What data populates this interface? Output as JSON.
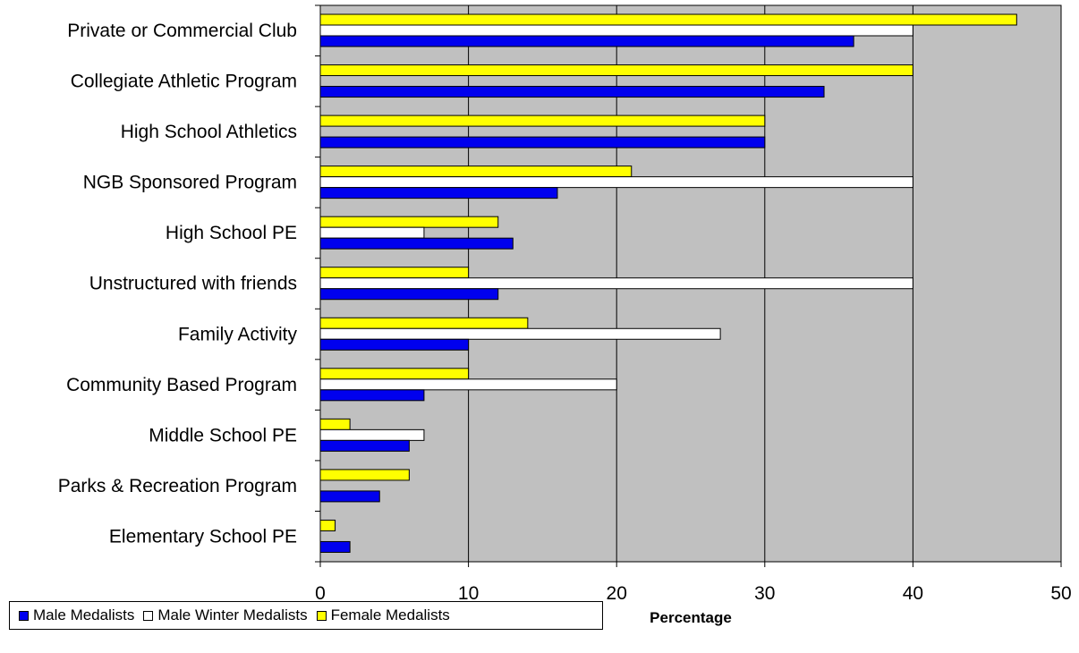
{
  "chart_data": {
    "type": "bar",
    "orientation": "horizontal",
    "categories": [
      "Private or Commercial Club",
      "Collegiate Athletic Program",
      "High School Athletics",
      "NGB Sponsored Program",
      "High School PE",
      "Unstructured with friends",
      "Family Activity",
      "Community Based Program",
      "Middle School PE",
      "Parks & Recreation Program",
      "Elementary School PE"
    ],
    "series": [
      {
        "name": "Male Medalists",
        "color": "#0000ee",
        "values": [
          36,
          34,
          30,
          16,
          13,
          12,
          10,
          7,
          6,
          4,
          2
        ]
      },
      {
        "name": "Male Winter Medalists",
        "color": "#ffffff",
        "values": [
          40,
          null,
          null,
          40,
          7,
          40,
          27,
          20,
          7,
          null,
          null
        ]
      },
      {
        "name": "Female Medalists",
        "color": "#ffff00",
        "values": [
          47,
          40,
          30,
          21,
          12,
          10,
          14,
          10,
          2,
          6,
          1
        ]
      }
    ],
    "xlabel": "Percentage",
    "xlim": [
      0,
      50
    ],
    "xticks": [
      "0",
      "10",
      "20",
      "30",
      "40",
      "50"
    ],
    "plot_background": "#c0c0c0",
    "grid": true,
    "legend": "bottom-left"
  }
}
